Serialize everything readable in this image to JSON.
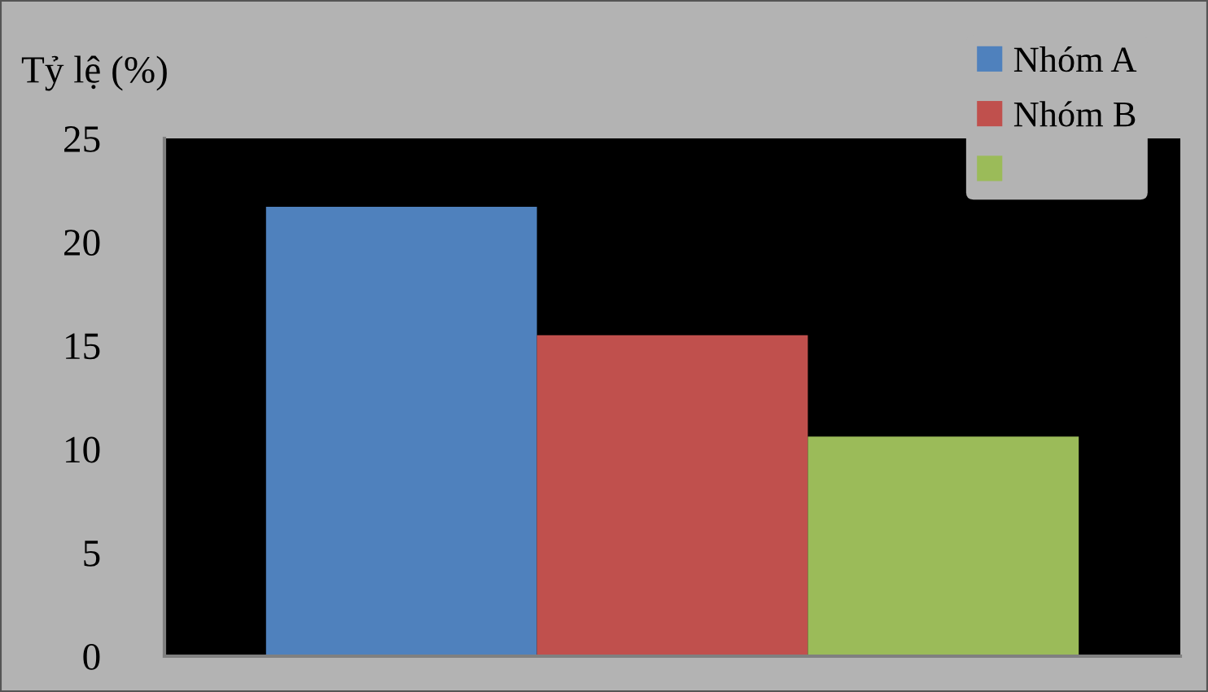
{
  "chart_data": {
    "type": "bar",
    "ylabel": "Tỷ lệ (%)",
    "categories": [
      null
    ],
    "series": [
      {
        "name": "Nhóm A",
        "color": "#4f81bd",
        "values": [
          21.7
        ]
      },
      {
        "name": "Nhóm B",
        "color": "#c0504d",
        "values": [
          15.5
        ]
      },
      {
        "color": "#9bbb59",
        "values": [
          10.6
        ]
      }
    ],
    "ylim": [
      0,
      25
    ],
    "yticks": [
      0,
      5,
      10,
      15,
      20,
      25
    ],
    "legend": "top right"
  }
}
